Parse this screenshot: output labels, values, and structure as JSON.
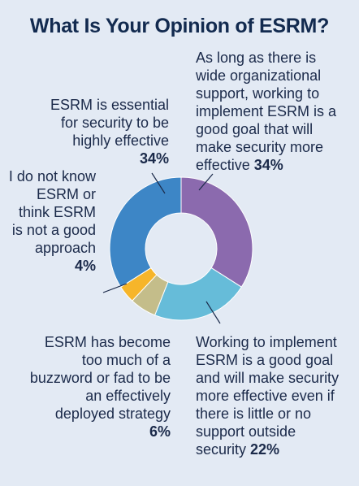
{
  "title": "What Is Your Opinion of ESRM?",
  "chart_data": {
    "type": "pie",
    "donut": true,
    "title": "What Is Your Opinion of ESRM?",
    "slices": [
      {
        "label": "As long as there is wide organizational support, working to implement ESRM is a good goal that will make security more effective",
        "value": 34,
        "pct_text": "34%",
        "color": "#8b6aae"
      },
      {
        "label": "Working to implement ESRM is a good goal and will make security more effective even if there is little or no support outside security",
        "value": 22,
        "pct_text": "22%",
        "color": "#66bcd9"
      },
      {
        "label": "ESRM has become too much of a buzzword or fad to be an effectively deployed strategy",
        "value": 6,
        "pct_text": "6%",
        "color": "#c4bd8a"
      },
      {
        "label": "I do not know ESRM or think ESRM is not a good approach",
        "value": 4,
        "pct_text": "4%",
        "color": "#f6b52a"
      },
      {
        "label": "ESRM is essential for security to be highly effective",
        "value": 34,
        "pct_text": "34%",
        "color": "#3d86c6"
      }
    ]
  }
}
